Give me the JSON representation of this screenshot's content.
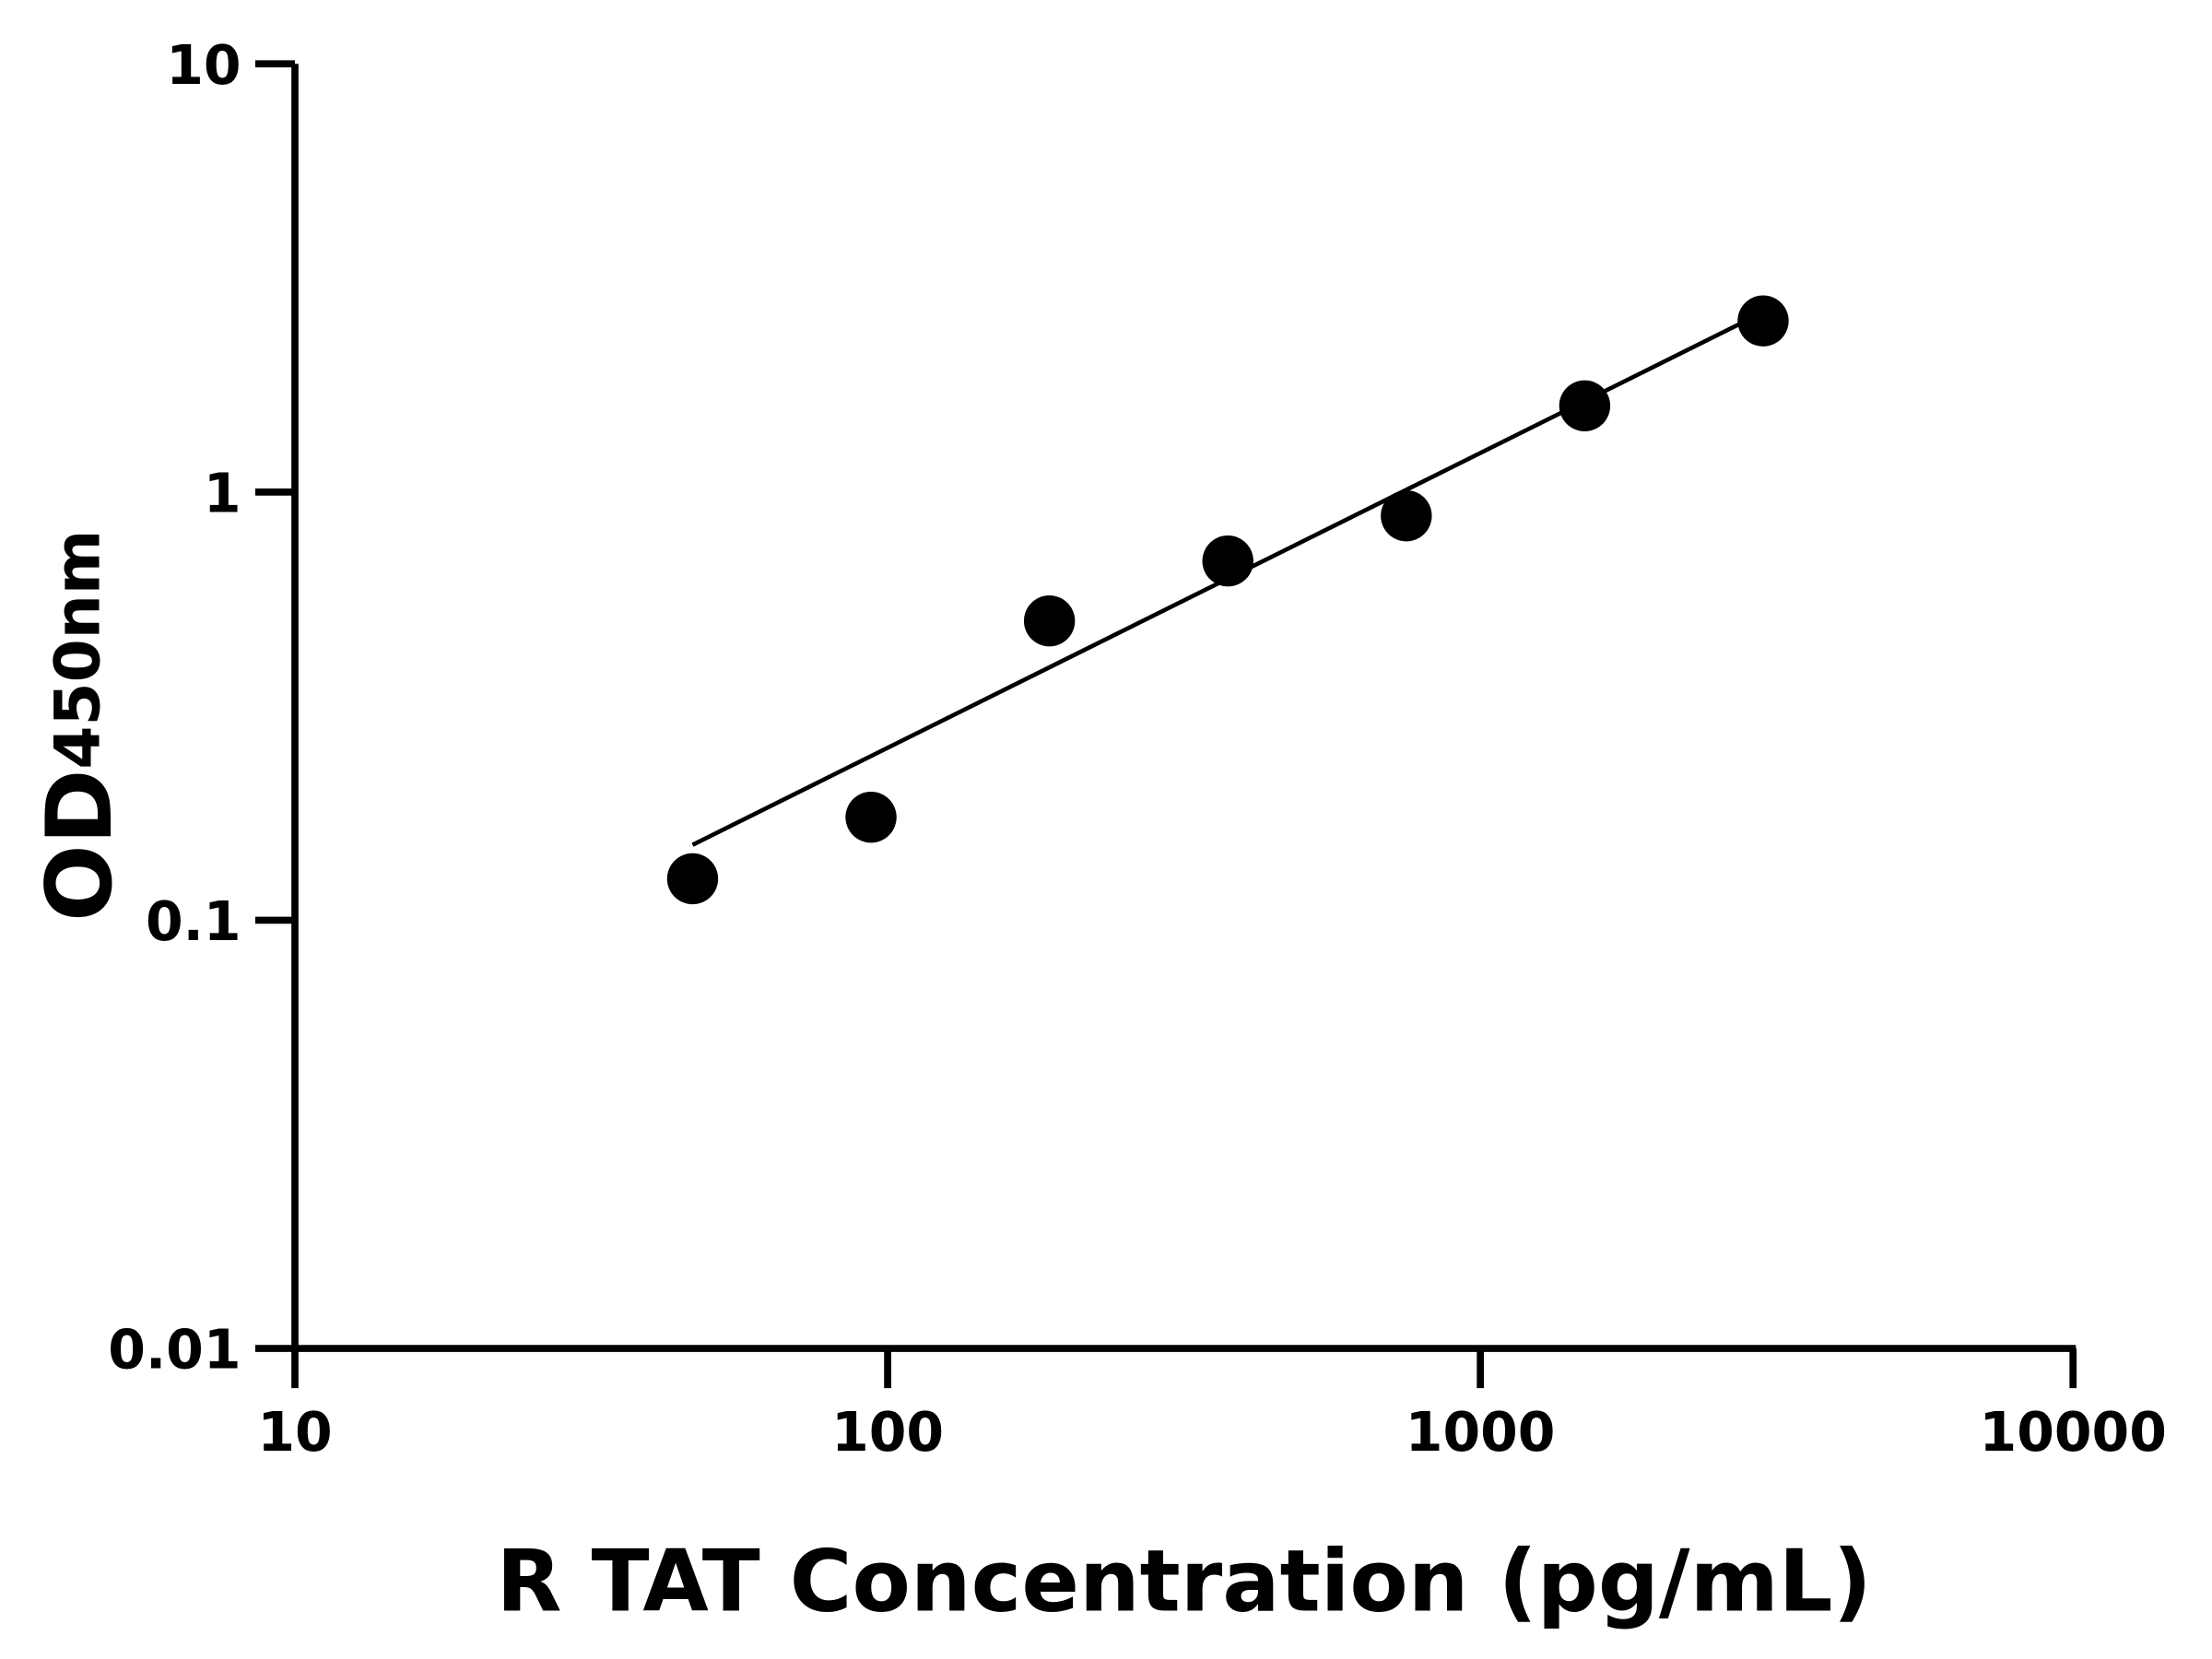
{
  "chart_data": {
    "type": "scatter",
    "title": "",
    "xlabel": "R TAT Concentration (pg/mL)",
    "ylabel_main": "OD",
    "ylabel_sub": "450nm",
    "x_scale": "log",
    "y_scale": "log",
    "xlim": [
      10,
      10000
    ],
    "ylim": [
      0.01,
      10
    ],
    "x_ticks": [
      10,
      100,
      1000,
      10000
    ],
    "x_tick_labels": [
      "10",
      "100",
      "1000",
      "10000"
    ],
    "y_ticks": [
      0.01,
      0.1,
      1,
      10
    ],
    "y_tick_labels": [
      "0.01",
      "0.1",
      "1",
      "10"
    ],
    "grid": false,
    "colors": {
      "points": "#000000",
      "line": "#000000",
      "axes": "#000000"
    },
    "series": [
      {
        "x": [
          46.875,
          93.75,
          187.5,
          375,
          750,
          1500,
          3000
        ],
        "y": [
          0.125,
          0.174,
          0.5,
          0.69,
          0.88,
          1.59,
          2.51
        ]
      }
    ],
    "fit_line": {
      "x": [
        46.875,
        2790
      ],
      "y": [
        0.15,
        2.5
      ]
    }
  }
}
